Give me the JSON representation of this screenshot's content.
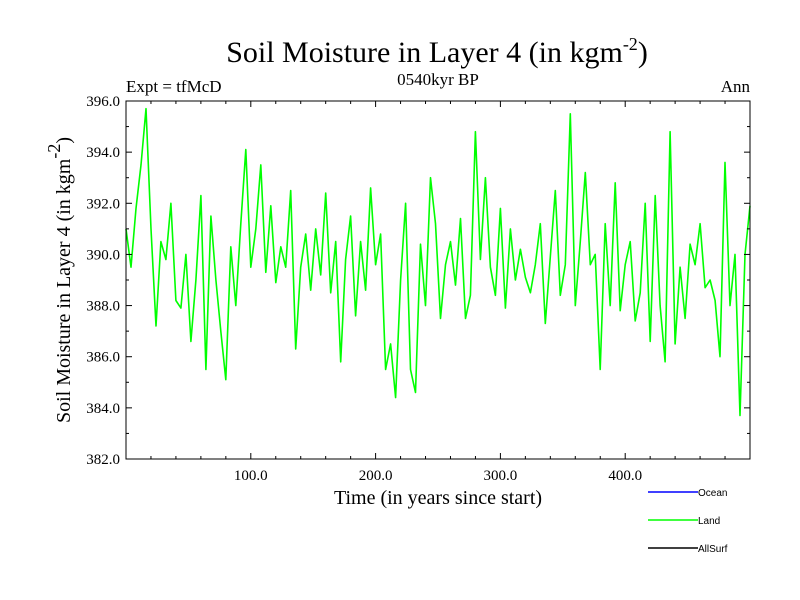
{
  "chart_data": {
    "type": "line",
    "title": "Soil Moisture in Layer 4 (in kgm",
    "title_sup": "-2",
    "title_tail": ")",
    "subtitle": "0540kyr BP",
    "left_header": "Expt = tfMcD",
    "right_header": "Ann",
    "xlabel": "Time (in years since start)",
    "ylabel": "Soil Moisture in Layer 4 (in kgm",
    "ylabel_sup": "-2",
    "ylabel_tail": ")",
    "xlim": [
      0,
      500
    ],
    "ylim": [
      382.0,
      396.0
    ],
    "x_ticks": [
      100,
      200,
      300,
      400
    ],
    "x_tick_labels": [
      "100.0",
      "200.0",
      "300.0",
      "400.0"
    ],
    "y_ticks": [
      382,
      384,
      386,
      388,
      390,
      392,
      394,
      396
    ],
    "y_tick_labels": [
      "382.0",
      "384.0",
      "386.0",
      "388.0",
      "390.0",
      "392.0",
      "394.0",
      "396.0"
    ],
    "legend": [
      {
        "name": "Ocean",
        "color": "#0000ff"
      },
      {
        "name": "Land",
        "color": "#00ff00"
      },
      {
        "name": "AllSurf",
        "color": "#000000"
      }
    ],
    "series": [
      {
        "name": "Land",
        "color": "#00ff00",
        "x_start": 0,
        "x_step": 4,
        "values": [
          391.0,
          389.5,
          391.8,
          393.5,
          395.7,
          391.0,
          387.2,
          390.5,
          389.8,
          392.0,
          388.2,
          387.9,
          390.0,
          386.6,
          389.0,
          392.3,
          385.5,
          391.5,
          389.0,
          387.0,
          385.1,
          390.3,
          388.0,
          391.2,
          394.1,
          389.5,
          391.0,
          393.5,
          389.3,
          391.9,
          388.9,
          390.3,
          389.5,
          392.5,
          386.3,
          389.5,
          390.8,
          388.6,
          391.0,
          389.2,
          392.4,
          388.5,
          390.5,
          385.8,
          389.8,
          391.5,
          387.6,
          390.5,
          388.6,
          392.6,
          389.6,
          390.8,
          385.5,
          386.5,
          384.4,
          389.0,
          392.0,
          385.5,
          384.6,
          390.4,
          388.0,
          393.0,
          391.2,
          387.5,
          389.6,
          390.5,
          388.8,
          391.4,
          387.5,
          388.4,
          394.8,
          389.8,
          393.0,
          389.5,
          388.4,
          391.8,
          387.9,
          391.0,
          389.0,
          390.2,
          389.1,
          388.5,
          389.6,
          391.2,
          387.3,
          389.9,
          392.5,
          388.4,
          389.6,
          395.5,
          388.0,
          390.5,
          393.2,
          389.6,
          390.0,
          385.5,
          391.2,
          388.0,
          392.8,
          387.8,
          389.6,
          390.5,
          387.4,
          388.5,
          392.0,
          386.6,
          392.3,
          388.0,
          385.8,
          394.8,
          386.5,
          389.5,
          387.5,
          390.4,
          389.6,
          391.2,
          388.7,
          389.0,
          388.2,
          386.0,
          393.6,
          388.0,
          390.0,
          383.7,
          390.0,
          391.9
        ]
      },
      {
        "name": "Ocean",
        "color": "#0000ff",
        "values": []
      },
      {
        "name": "AllSurf",
        "color": "#000000",
        "values": []
      }
    ]
  }
}
